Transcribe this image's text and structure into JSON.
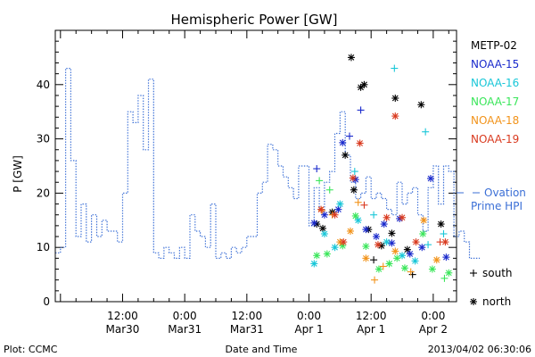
{
  "chart_data": {
    "type": "scatter",
    "title": "Hemispheric Power [GW]",
    "ylabel": "P [GW]",
    "xlabel": "Date and Time",
    "xlim": [
      "2013-03-29T23:00",
      "2013-04-02T04:30"
    ],
    "ylim": [
      0,
      50
    ],
    "y_ticks": [
      0,
      10,
      20,
      30,
      40
    ],
    "x_ticks": [
      {
        "t": "2013-03-30T12:00",
        "line1": "12:00",
        "line2": "Mar30"
      },
      {
        "t": "2013-03-31T00:00",
        "line1": "0:00",
        "line2": "Mar31"
      },
      {
        "t": "2013-03-31T12:00",
        "line1": "12:00",
        "line2": "Mar31"
      },
      {
        "t": "2013-04-01T00:00",
        "line1": "0:00",
        "line2": "Apr 1"
      },
      {
        "t": "2013-04-01T12:00",
        "line1": "12:00",
        "line2": "Apr 1"
      },
      {
        "t": "2013-04-02T00:00",
        "line1": "0:00",
        "line2": "Apr 2"
      }
    ],
    "footer_left": "Plot: CCMC",
    "footer_right": "2013/04/02 06:30:06",
    "ovation": {
      "label": "Ovation",
      "label2": "Prime HPI",
      "color": "#3b6fd6",
      "step_hours": 1,
      "start": "2013-03-29T23:00",
      "values": [
        9,
        10,
        43,
        26,
        12,
        18,
        11,
        16,
        12,
        15,
        13,
        13,
        11,
        20,
        35,
        33,
        38,
        28,
        41,
        9,
        8,
        10,
        9,
        8,
        10,
        8,
        16,
        13,
        12,
        10,
        18,
        8,
        9,
        8,
        10,
        9,
        10,
        12,
        12,
        20,
        22,
        29,
        28,
        25,
        23,
        21,
        19,
        25,
        25,
        14,
        21,
        17,
        22,
        24,
        31,
        35,
        27,
        22,
        19,
        20,
        23,
        19,
        20,
        19,
        17,
        16,
        22,
        18,
        20,
        21,
        16,
        13,
        21,
        25,
        18,
        25,
        24,
        12,
        13,
        11,
        8,
        8
      ]
    },
    "series": [
      {
        "name": "METP-02",
        "color": "#000000",
        "points": [
          {
            "x": "2013-04-01T08:10",
            "y": 45,
            "m": "n"
          },
          {
            "x": "2013-04-01T10:00",
            "y": 39.5,
            "m": "n"
          },
          {
            "x": "2013-04-01T10:40",
            "y": 40,
            "m": "n"
          },
          {
            "x": "2013-04-01T16:40",
            "y": 37.5,
            "m": "n"
          },
          {
            "x": "2013-04-01T21:40",
            "y": 36.3,
            "m": "n"
          },
          {
            "x": "2013-04-01T07:00",
            "y": 27,
            "m": "n"
          },
          {
            "x": "2013-04-01T01:30",
            "y": 14.3,
            "m": "n"
          },
          {
            "x": "2013-04-01T02:40",
            "y": 13.5,
            "m": "n"
          },
          {
            "x": "2013-04-01T04:30",
            "y": 16.5,
            "m": "n"
          },
          {
            "x": "2013-04-01T11:30",
            "y": 13.3,
            "m": "n"
          },
          {
            "x": "2013-04-01T14:00",
            "y": 10.3,
            "m": "n"
          },
          {
            "x": "2013-04-01T16:00",
            "y": 12.6,
            "m": "n"
          },
          {
            "x": "2013-04-01T19:00",
            "y": 9.6,
            "m": "n"
          },
          {
            "x": "2013-04-01T20:00",
            "y": 5,
            "m": "s"
          },
          {
            "x": "2013-04-02T01:30",
            "y": 14.3,
            "m": "n"
          },
          {
            "x": "2013-04-01T12:30",
            "y": 7.7,
            "m": "s"
          },
          {
            "x": "2013-04-01T08:40",
            "y": 20.6,
            "m": "n"
          }
        ]
      },
      {
        "name": "NOAA-15",
        "color": "#1a2acc",
        "points": [
          {
            "x": "2013-04-01T10:00",
            "y": 35.3,
            "m": "s"
          },
          {
            "x": "2013-04-01T06:30",
            "y": 29.3,
            "m": "n"
          },
          {
            "x": "2013-04-01T07:50",
            "y": 30.5,
            "m": "s"
          },
          {
            "x": "2013-04-01T09:00",
            "y": 22.5,
            "m": "n"
          },
          {
            "x": "2013-04-01T01:30",
            "y": 24.5,
            "m": "s"
          },
          {
            "x": "2013-04-01T01:00",
            "y": 14.5,
            "m": "n"
          },
          {
            "x": "2013-04-01T03:00",
            "y": 16,
            "m": "n"
          },
          {
            "x": "2013-04-01T05:40",
            "y": 17,
            "m": "n"
          },
          {
            "x": "2013-04-01T11:00",
            "y": 13.3,
            "m": "n"
          },
          {
            "x": "2013-04-01T13:00",
            "y": 12,
            "m": "n"
          },
          {
            "x": "2013-04-01T14:30",
            "y": 14.3,
            "m": "n"
          },
          {
            "x": "2013-04-01T17:30",
            "y": 15.3,
            "m": "n"
          },
          {
            "x": "2013-04-01T19:30",
            "y": 8.8,
            "m": "n"
          },
          {
            "x": "2013-04-01T21:50",
            "y": 10,
            "m": "n"
          },
          {
            "x": "2013-04-01T23:30",
            "y": 22.7,
            "m": "n"
          },
          {
            "x": "2013-04-02T02:30",
            "y": 8.2,
            "m": "n"
          },
          {
            "x": "2013-04-01T16:00",
            "y": 10.8,
            "m": "n"
          }
        ]
      },
      {
        "name": "NOAA-16",
        "color": "#19c7d8",
        "points": [
          {
            "x": "2013-04-01T16:30",
            "y": 43,
            "m": "s"
          },
          {
            "x": "2013-04-01T22:30",
            "y": 31.3,
            "m": "s"
          },
          {
            "x": "2013-04-01T08:50",
            "y": 24,
            "m": "s"
          },
          {
            "x": "2013-04-01T01:00",
            "y": 7,
            "m": "n"
          },
          {
            "x": "2013-04-01T03:00",
            "y": 12.5,
            "m": "n"
          },
          {
            "x": "2013-04-01T06:00",
            "y": 18,
            "m": "n"
          },
          {
            "x": "2013-04-01T09:30",
            "y": 15,
            "m": "n"
          },
          {
            "x": "2013-04-01T12:30",
            "y": 16,
            "m": "s"
          },
          {
            "x": "2013-04-01T15:00",
            "y": 11,
            "m": "n"
          },
          {
            "x": "2013-04-01T18:00",
            "y": 8.5,
            "m": "n"
          },
          {
            "x": "2013-04-01T20:30",
            "y": 7.5,
            "m": "n"
          },
          {
            "x": "2013-04-01T23:00",
            "y": 10.5,
            "m": "s"
          },
          {
            "x": "2013-04-02T02:00",
            "y": 12.5,
            "m": "s"
          },
          {
            "x": "2013-04-01T05:00",
            "y": 10,
            "m": "n"
          }
        ]
      },
      {
        "name": "NOAA-17",
        "color": "#3ae65a",
        "points": [
          {
            "x": "2013-04-01T02:00",
            "y": 22.3,
            "m": "s"
          },
          {
            "x": "2013-04-01T04:00",
            "y": 20.6,
            "m": "s"
          },
          {
            "x": "2013-04-01T01:30",
            "y": 8.5,
            "m": "n"
          },
          {
            "x": "2013-04-01T03:30",
            "y": 8.8,
            "m": "n"
          },
          {
            "x": "2013-04-01T06:30",
            "y": 10.3,
            "m": "n"
          },
          {
            "x": "2013-04-01T09:00",
            "y": 15.8,
            "m": "n"
          },
          {
            "x": "2013-04-01T11:00",
            "y": 10.2,
            "m": "n"
          },
          {
            "x": "2013-04-01T13:30",
            "y": 6,
            "m": "n"
          },
          {
            "x": "2013-04-01T15:30",
            "y": 7,
            "m": "n"
          },
          {
            "x": "2013-04-01T18:30",
            "y": 6.2,
            "m": "n"
          },
          {
            "x": "2013-04-01T22:00",
            "y": 12.5,
            "m": "n"
          },
          {
            "x": "2013-04-01T23:50",
            "y": 6,
            "m": "n"
          },
          {
            "x": "2013-04-02T03:00",
            "y": 5.3,
            "m": "n"
          },
          {
            "x": "2013-04-02T02:10",
            "y": 4.3,
            "m": "s"
          },
          {
            "x": "2013-04-01T17:00",
            "y": 8,
            "m": "n"
          }
        ]
      },
      {
        "name": "NOAA-18",
        "color": "#f2931a",
        "points": [
          {
            "x": "2013-04-01T02:30",
            "y": 16.8,
            "m": "s"
          },
          {
            "x": "2013-04-01T04:30",
            "y": 16,
            "m": "s"
          },
          {
            "x": "2013-04-01T06:00",
            "y": 11,
            "m": "n"
          },
          {
            "x": "2013-04-01T09:30",
            "y": 18.3,
            "m": "s"
          },
          {
            "x": "2013-04-01T11:00",
            "y": 8,
            "m": "n"
          },
          {
            "x": "2013-04-01T12:40",
            "y": 4,
            "m": "s"
          },
          {
            "x": "2013-04-01T14:20",
            "y": 6.5,
            "m": "s"
          },
          {
            "x": "2013-04-01T16:40",
            "y": 9.3,
            "m": "n"
          },
          {
            "x": "2013-04-01T19:40",
            "y": 5.5,
            "m": "s"
          },
          {
            "x": "2013-04-01T22:10",
            "y": 15,
            "m": "n"
          },
          {
            "x": "2013-04-02T00:40",
            "y": 7.7,
            "m": "n"
          },
          {
            "x": "2013-04-01T08:00",
            "y": 13,
            "m": "n"
          }
        ]
      },
      {
        "name": "NOAA-19",
        "color": "#d93a1f",
        "points": [
          {
            "x": "2013-04-01T09:50",
            "y": 29.2,
            "m": "n"
          },
          {
            "x": "2013-04-01T16:40",
            "y": 34.2,
            "m": "n"
          },
          {
            "x": "2013-04-01T08:30",
            "y": 22.8,
            "m": "n"
          },
          {
            "x": "2013-04-01T02:20",
            "y": 17,
            "m": "n"
          },
          {
            "x": "2013-04-01T05:00",
            "y": 16,
            "m": "n"
          },
          {
            "x": "2013-04-01T10:40",
            "y": 17.8,
            "m": "s"
          },
          {
            "x": "2013-04-01T15:00",
            "y": 15.5,
            "m": "n"
          },
          {
            "x": "2013-04-01T18:00",
            "y": 15.5,
            "m": "n"
          },
          {
            "x": "2013-04-02T02:20",
            "y": 11,
            "m": "n"
          },
          {
            "x": "2013-04-02T01:20",
            "y": 11,
            "m": "s"
          },
          {
            "x": "2013-04-01T06:40",
            "y": 11,
            "m": "n"
          },
          {
            "x": "2013-04-01T13:20",
            "y": 10.5,
            "m": "n"
          },
          {
            "x": "2013-04-01T20:40",
            "y": 11,
            "m": "n"
          }
        ]
      }
    ],
    "marker_legend": [
      {
        "symbol": "+",
        "label": "south"
      },
      {
        "symbol": "*",
        "label": "north"
      }
    ]
  }
}
